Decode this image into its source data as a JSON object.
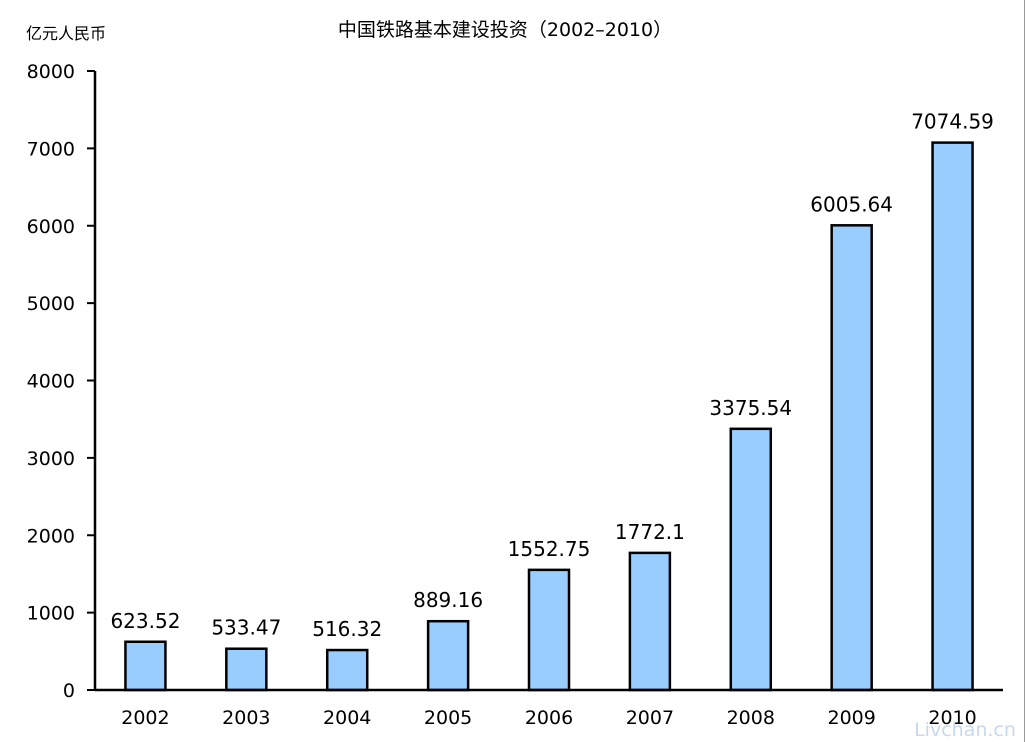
{
  "chart_data": {
    "type": "bar",
    "title": "中国铁路基本建设投资（2002–2010）",
    "ylabel": "亿元人民币",
    "xlabel": "",
    "categories": [
      "2002",
      "2003",
      "2004",
      "2005",
      "2006",
      "2007",
      "2008",
      "2009",
      "2010"
    ],
    "values": [
      623.52,
      533.47,
      516.32,
      889.16,
      1552.75,
      1772.1,
      3375.54,
      6005.64,
      7074.59
    ],
    "value_labels": [
      "623.52",
      "533.47",
      "516.32",
      "889.16",
      "1552.75",
      "1772.1",
      "3375.54",
      "6005.64",
      "7074.59"
    ],
    "yticks": [
      "0",
      "1000",
      "2000",
      "3000",
      "4000",
      "5000",
      "6000",
      "7000",
      "8000"
    ],
    "ylim": [
      0,
      8000
    ],
    "grid": false,
    "legend": "none",
    "bar_color": "#99ccff",
    "outline_color": "#000000"
  },
  "watermark": "Livchan.cn"
}
